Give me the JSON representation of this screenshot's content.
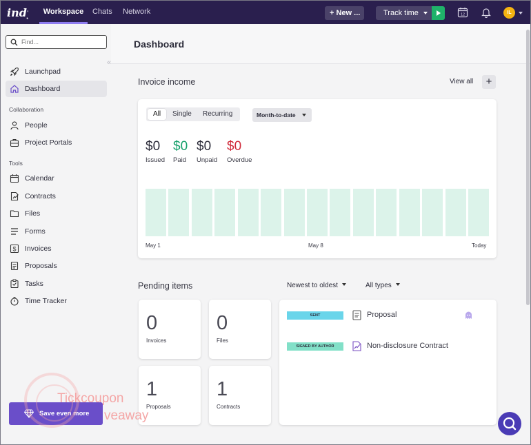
{
  "topbar": {
    "tabs": [
      {
        "label": "Workspace",
        "active": true
      },
      {
        "label": "Chats",
        "active": false
      },
      {
        "label": "Network",
        "active": false
      }
    ],
    "new_button": "+ New ...",
    "track_time": "Track time",
    "calendar_day": "12",
    "avatar_initials": "IL",
    "colors": {
      "bg": "#2a1f4e",
      "accent": "#8e7cf0",
      "play": "#1fb26a",
      "avatar": "#f5b412"
    }
  },
  "sidebar": {
    "search_placeholder": "Find...",
    "items_top": [
      {
        "label": "Launchpad",
        "icon": "rocket-icon"
      },
      {
        "label": "Dashboard",
        "icon": "home-icon",
        "active": true
      }
    ],
    "collaboration_label": "Collaboration",
    "collaboration": [
      {
        "label": "People",
        "icon": "person-icon"
      },
      {
        "label": "Project Portals",
        "icon": "briefcase-icon"
      }
    ],
    "tools_label": "Tools",
    "tools": [
      {
        "label": "Calendar",
        "icon": "calendar-icon"
      },
      {
        "label": "Contracts",
        "icon": "contract-icon"
      },
      {
        "label": "Files",
        "icon": "folder-icon"
      },
      {
        "label": "Forms",
        "icon": "forms-icon"
      },
      {
        "label": "Invoices",
        "icon": "dollar-icon"
      },
      {
        "label": "Proposals",
        "icon": "document-icon"
      },
      {
        "label": "Tasks",
        "icon": "tasks-icon"
      },
      {
        "label": "Time Tracker",
        "icon": "stopwatch-icon"
      }
    ],
    "save_button": "Save even more"
  },
  "main": {
    "title": "Dashboard",
    "invoice_income": {
      "title": "Invoice income",
      "view_all": "View all",
      "plus": "+",
      "filters": [
        "All",
        "Single",
        "Recurring"
      ],
      "active_filter": "All",
      "period": "Month-to-date",
      "stats": [
        {
          "value": "$0",
          "label": "Issued",
          "color": "#2c2c3a"
        },
        {
          "value": "$0",
          "label": "Paid",
          "color": "#16a06b"
        },
        {
          "value": "$0",
          "label": "Unpaid",
          "color": "#2c2c3a"
        },
        {
          "value": "$0",
          "label": "Overdue",
          "color": "#d02a3a"
        }
      ],
      "chart_bar_count": 15,
      "x_labels": [
        "May 1",
        "May 8",
        "Today"
      ]
    },
    "pending": {
      "title": "Pending items",
      "sort": "Newest to oldest",
      "type_filter": "All types",
      "tiles": [
        {
          "count": "0",
          "label": "Invoices"
        },
        {
          "count": "0",
          "label": "Files"
        },
        {
          "count": "1",
          "label": "Proposals"
        },
        {
          "count": "1",
          "label": "Contracts"
        }
      ],
      "items": [
        {
          "badge": "SENT",
          "icon": "document-icon",
          "name": "Proposal"
        },
        {
          "badge": "SIGNED BY AUTHOR",
          "icon": "contract-sign-icon",
          "name": "Non-disclosure Contract"
        }
      ]
    }
  },
  "watermark": {
    "line1": "Tickcoupon",
    "line2": "veaway"
  }
}
